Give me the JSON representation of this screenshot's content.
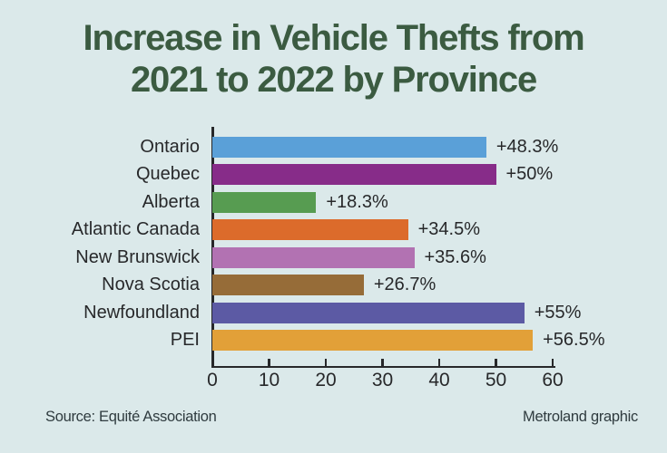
{
  "title": {
    "line1": "Increase in Vehicle Thefts from",
    "line2": "2021 to 2022 by Province"
  },
  "chart_data": {
    "type": "bar",
    "orientation": "horizontal",
    "title": "Increase in Vehicle Thefts from 2021 to 2022 by Province",
    "categories": [
      "Ontario",
      "Quebec",
      "Alberta",
      "Atlantic Canada",
      "New Brunswick",
      "Nova Scotia",
      "Newfoundland",
      "PEI"
    ],
    "values": [
      48.3,
      50,
      18.3,
      34.5,
      35.6,
      26.7,
      55,
      56.5
    ],
    "value_labels": [
      "+48.3%",
      "+50%",
      "+18.3%",
      "+34.5%",
      "+35.6%",
      "+26.7%",
      "+55%",
      "+56.5%"
    ],
    "bar_colors": [
      "#5aa0d8",
      "#872c89",
      "#579c51",
      "#dc6b2b",
      "#b272b2",
      "#966c38",
      "#5c5aa4",
      "#e2a038"
    ],
    "x_ticks": [
      0,
      10,
      20,
      30,
      40,
      50,
      60
    ],
    "xlim": [
      0,
      60
    ],
    "xlabel": "",
    "ylabel": "",
    "grid": false,
    "legend": false
  },
  "footer": {
    "source": "Source: Equité Association",
    "credit": "Metroland graphic"
  },
  "colors": {
    "background": "#dbe9ea",
    "title": "#3b5b41",
    "text": "#27282a",
    "axis": "#27282a",
    "footer_text": "#2f3b3f"
  }
}
